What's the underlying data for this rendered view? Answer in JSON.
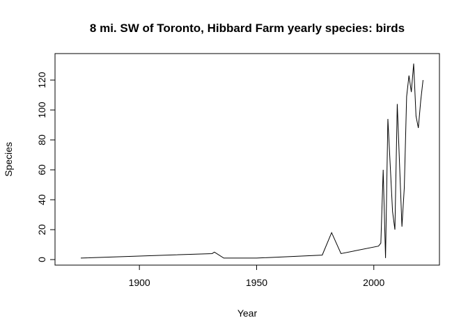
{
  "chart_data": {
    "type": "line",
    "title": "8 mi. SW of Toronto, Hibbard Farm yearly species: birds",
    "x_label": "Year",
    "y_label": "Species",
    "x": [
      1875,
      1931,
      1932,
      1936,
      1950,
      1978,
      1982,
      1986,
      2002,
      2003,
      2004,
      2005,
      2006,
      2008,
      2009,
      2010,
      2012,
      2013,
      2014,
      2015,
      2016,
      2017,
      2018,
      2019,
      2020,
      2021
    ],
    "values": [
      1,
      4,
      5,
      1,
      1,
      3,
      18,
      4,
      9,
      11,
      60,
      1,
      94,
      32,
      20,
      104,
      22,
      48,
      109,
      123,
      112,
      131,
      96,
      88,
      106,
      120
    ],
    "color": "#000000",
    "xlim": [
      1864,
      2028
    ],
    "ylim": [
      -3.7,
      137.7
    ],
    "xticks": [
      1900,
      1950,
      2000
    ],
    "yticks": [
      0,
      20,
      40,
      60,
      80,
      100,
      120
    ]
  }
}
